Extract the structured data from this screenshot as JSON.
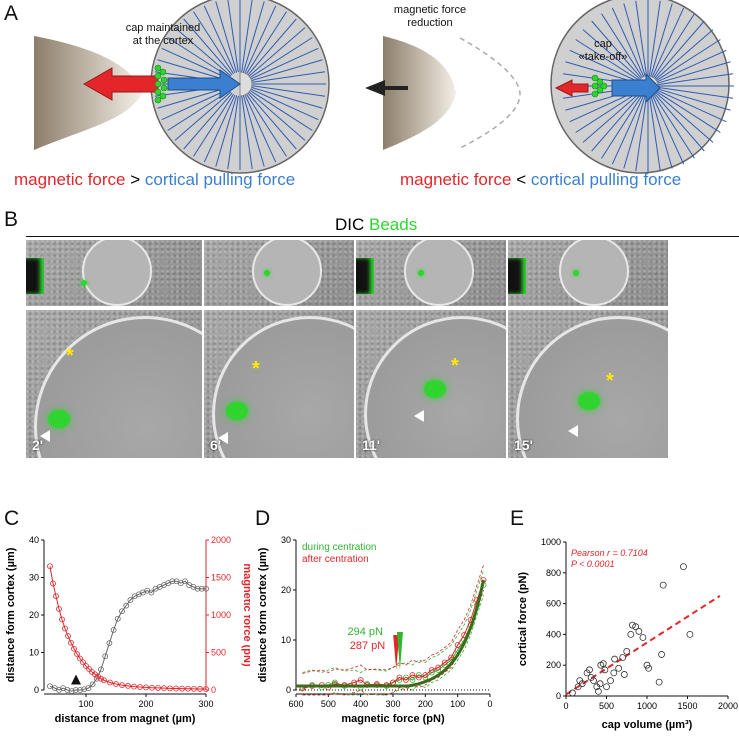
{
  "panels": {
    "A": "A",
    "B": "B",
    "C": "C",
    "D": "D",
    "E": "E"
  },
  "panelA": {
    "left_caption": [
      "cap maintained",
      "at the cortex"
    ],
    "middle_caption": [
      "magnetic force",
      "reduction"
    ],
    "right_caption": [
      "cap",
      "«take-off»"
    ],
    "left_force": {
      "red": "magnetic force",
      "op": ">",
      "blue": "cortical pulling force"
    },
    "right_force": {
      "red": "magnetic force",
      "op": "<",
      "blue": "cortical pulling force"
    },
    "colors": {
      "magnet": "#e2262a",
      "cortical": "#3a7fd0",
      "beads": "#2fd42f",
      "aster": "#2e5bb0"
    }
  },
  "panelB": {
    "header_dic": "DIC",
    "header_beads": "Beads",
    "times": [
      "2'",
      "6'",
      "11'",
      "15'"
    ],
    "star": "*"
  },
  "chart_data": [
    {
      "type": "line",
      "panel": "C",
      "xlabel": "distance from magnet (µm)",
      "ylabel": "distance form cortex (µm)",
      "y2label": "magnetic force (pN)",
      "xlim": [
        30,
        300
      ],
      "ylim": [
        0,
        40
      ],
      "y2lim": [
        0,
        2000
      ],
      "xticks": [
        100,
        200,
        300
      ],
      "yticks": [
        0,
        10,
        20,
        30,
        40
      ],
      "y2ticks": [
        0,
        500,
        1000,
        1500,
        2000
      ],
      "series": [
        {
          "axis": "left",
          "color": "#666666",
          "x": [
            40,
            48,
            55,
            62,
            69,
            76,
            83,
            90,
            97,
            104,
            111,
            118,
            125,
            132,
            139,
            146,
            153,
            160,
            167,
            174,
            181,
            188,
            195,
            202,
            209,
            216,
            223,
            230,
            237,
            244,
            251,
            258,
            265,
            272,
            279,
            286,
            293,
            300
          ],
          "y": [
            1,
            0.5,
            0,
            0.5,
            0,
            -0.3,
            0,
            0,
            0.2,
            0.5,
            1.5,
            3,
            5.5,
            9,
            12.5,
            16,
            19,
            21,
            22.5,
            24,
            25,
            25.5,
            26,
            26.5,
            26,
            27,
            27.5,
            28,
            28.5,
            29,
            29,
            28.5,
            29,
            28,
            27.5,
            27,
            27,
            27
          ]
        },
        {
          "axis": "right",
          "color": "#e2262a",
          "x": [
            40,
            45,
            50,
            55,
            60,
            65,
            70,
            75,
            80,
            85,
            90,
            95,
            100,
            105,
            110,
            115,
            120,
            125,
            130,
            140,
            150,
            160,
            170,
            180,
            190,
            200,
            210,
            220,
            230,
            240,
            250,
            260,
            270,
            280,
            290,
            300
          ],
          "y": [
            1650,
            1420,
            1250,
            1080,
            940,
            820,
            720,
            630,
            550,
            480,
            420,
            370,
            320,
            280,
            240,
            210,
            180,
            150,
            130,
            100,
            80,
            65,
            55,
            45,
            40,
            35,
            30,
            28,
            25,
            22,
            20,
            18,
            17,
            15,
            14,
            12
          ]
        }
      ],
      "annotation": "arrowhead at ~85 µm"
    },
    {
      "type": "line",
      "panel": "D",
      "xlabel": "magnetic force (pN)",
      "ylabel": "distance form cortex (µm)",
      "xlim": [
        600,
        0
      ],
      "ylim": [
        0,
        30
      ],
      "xticks": [
        600,
        500,
        400,
        300,
        200,
        100,
        0
      ],
      "yticks": [
        0,
        10,
        20,
        30
      ],
      "legend": [
        {
          "label": "during centration",
          "color": "#2fb52f"
        },
        {
          "label": "after centration",
          "color": "#e2262a"
        }
      ],
      "annotations": [
        {
          "label": "287 pN",
          "x": 287,
          "color": "#e2262a"
        },
        {
          "label": "294 pN",
          "x": 294,
          "color": "#2fb52f"
        }
      ],
      "series": [
        {
          "color": "#2fb52f",
          "x": [
            580,
            550,
            520,
            500,
            480,
            450,
            420,
            400,
            380,
            350,
            320,
            300,
            280,
            260,
            240,
            220,
            200,
            180,
            160,
            140,
            120,
            100,
            80,
            60,
            40,
            20
          ],
          "y": [
            0.5,
            1,
            0.5,
            1,
            1.5,
            0.8,
            1,
            0.5,
            1.2,
            1,
            0.8,
            1.5,
            2,
            2.5,
            2,
            3,
            2.5,
            3.5,
            4,
            5,
            6,
            8,
            10,
            13,
            17,
            21
          ]
        },
        {
          "color": "#e2262a",
          "x": [
            580,
            550,
            520,
            500,
            480,
            450,
            420,
            400,
            380,
            350,
            320,
            300,
            280,
            260,
            240,
            220,
            200,
            180,
            160,
            140,
            120,
            100,
            80,
            60,
            40,
            20
          ],
          "y": [
            0.3,
            0.8,
            1,
            0.5,
            1.2,
            1,
            1.5,
            2,
            1,
            1.2,
            1,
            1.5,
            2.5,
            2,
            3,
            2.5,
            3,
            4,
            4.5,
            5.5,
            6.5,
            9,
            11,
            14,
            18,
            22
          ]
        }
      ]
    },
    {
      "type": "scatter",
      "panel": "E",
      "xlabel": "cap volume (µm³)",
      "ylabel": "cortical force (pN)",
      "xlim": [
        0,
        2000
      ],
      "ylim": [
        0,
        1000
      ],
      "xticks": [
        0,
        500,
        1000,
        1500,
        2000
      ],
      "yticks": [
        0,
        200,
        400,
        600,
        800,
        1000
      ],
      "annotation": [
        "Pearson r = 0.7104",
        "P < 0.0001"
      ],
      "fit_color": "#e2262a",
      "points": [
        [
          80,
          20
        ],
        [
          150,
          60
        ],
        [
          170,
          100
        ],
        [
          200,
          80
        ],
        [
          260,
          150
        ],
        [
          290,
          170
        ],
        [
          310,
          120
        ],
        [
          340,
          100
        ],
        [
          380,
          60
        ],
        [
          400,
          30
        ],
        [
          420,
          80
        ],
        [
          430,
          200
        ],
        [
          460,
          210
        ],
        [
          480,
          170
        ],
        [
          500,
          60
        ],
        [
          550,
          100
        ],
        [
          590,
          150
        ],
        [
          600,
          240
        ],
        [
          650,
          180
        ],
        [
          700,
          250
        ],
        [
          720,
          140
        ],
        [
          750,
          290
        ],
        [
          800,
          400
        ],
        [
          820,
          460
        ],
        [
          860,
          450
        ],
        [
          900,
          420
        ],
        [
          950,
          380
        ],
        [
          1000,
          200
        ],
        [
          1020,
          180
        ],
        [
          1150,
          90
        ],
        [
          1180,
          270
        ],
        [
          1200,
          720
        ],
        [
          1450,
          840
        ],
        [
          1530,
          400
        ]
      ]
    }
  ]
}
